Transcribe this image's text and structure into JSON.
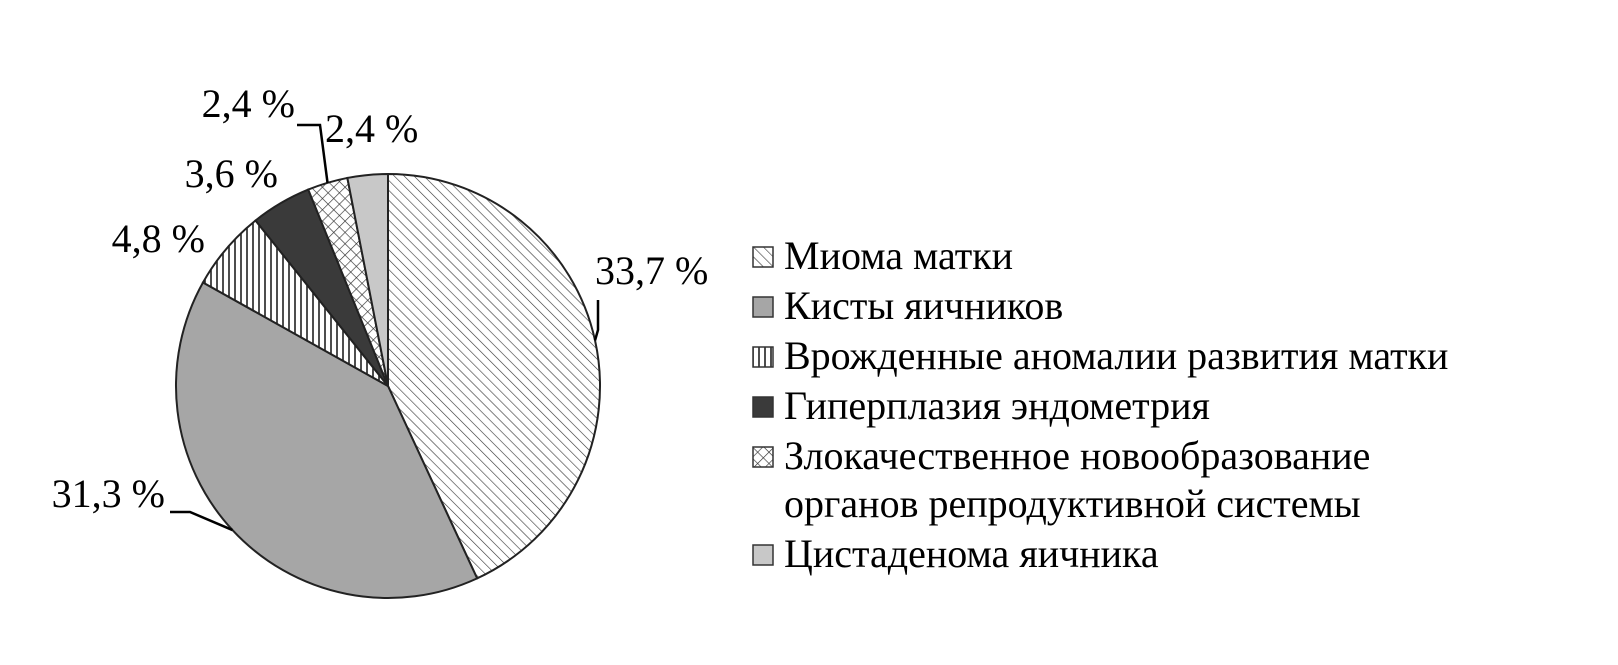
{
  "chart_data": {
    "type": "pie",
    "categories": [
      "Миома матки",
      "Кисты яичников",
      "Врожденные аномалии развития матки",
      "Гиперплазия эндометрия",
      "Злокачественное новообразование\nорганов репродуктивной системы",
      "Цистаденома яичника"
    ],
    "values": [
      33.7,
      31.3,
      4.8,
      3.6,
      2.4,
      2.4
    ],
    "value_labels": [
      "33,7 %",
      "31,3 %",
      "4,8 %",
      "3,6 %",
      "2,4 %",
      "2,4 %"
    ],
    "colors": [
      "#ffffff",
      "#a6a6a6",
      "#ffffff",
      "#3a3a3a",
      "#ffffff",
      "#c8c8c8"
    ],
    "patterns": [
      "diagonal",
      "solid",
      "vertical",
      "solid",
      "crosshatch",
      "solid"
    ],
    "legend": "right"
  }
}
